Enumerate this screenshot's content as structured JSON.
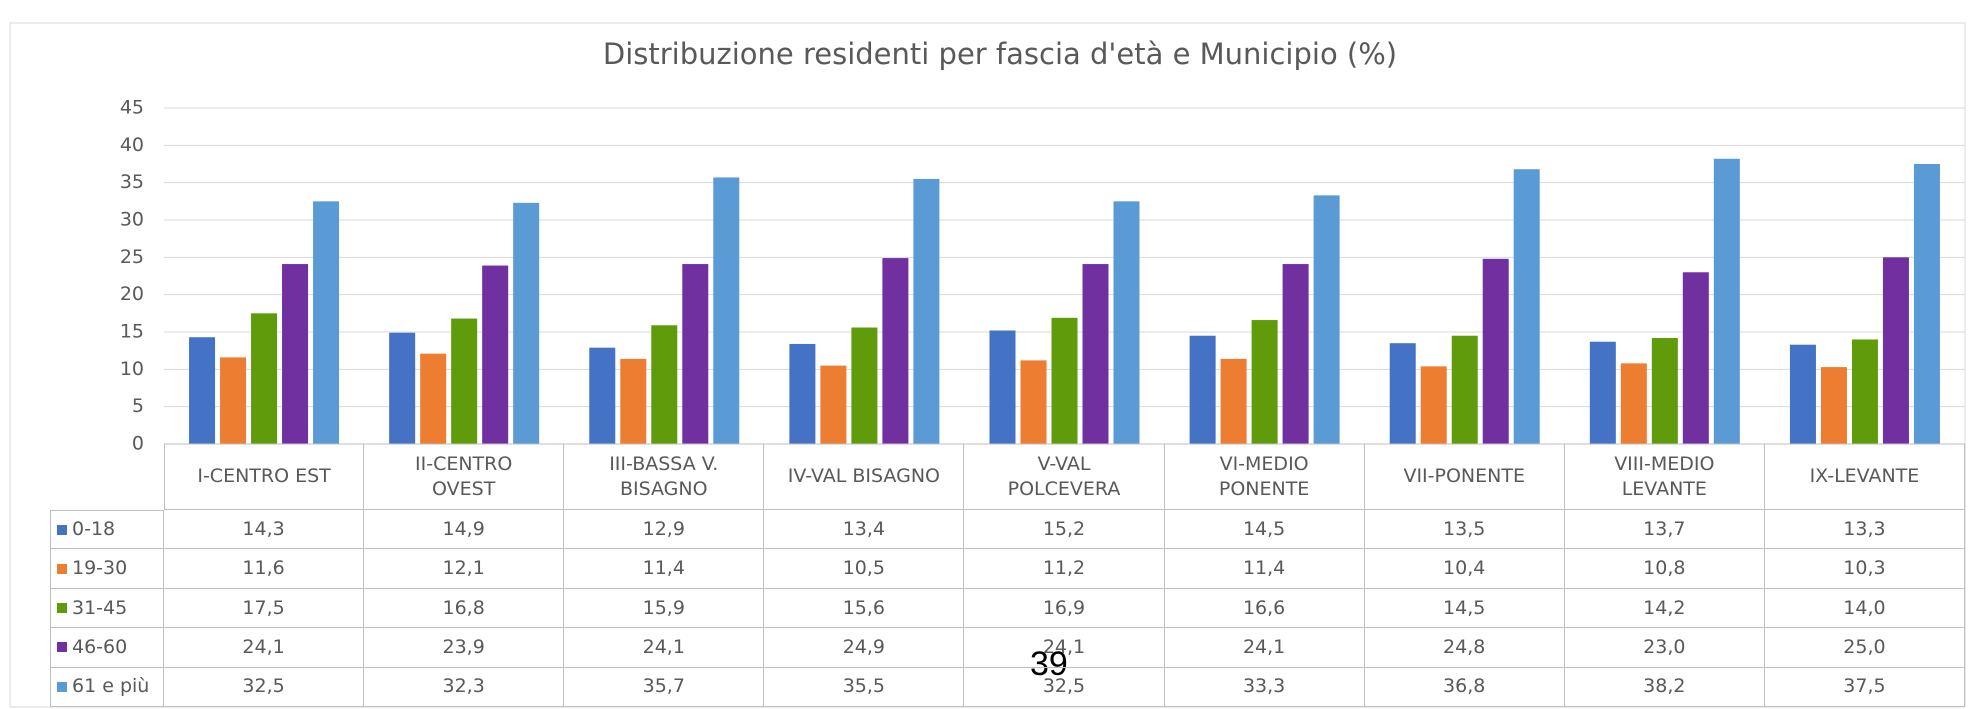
{
  "chart_data": {
    "type": "bar",
    "title": "Distribuzione residenti per fascia d'età e Municipio (%)",
    "categories": [
      "I-CENTRO EST",
      "II-CENTRO OVEST",
      "III-BASSA V. BISAGNO",
      "IV-VAL BISAGNO",
      "V-VAL POLCEVERA",
      "VI-MEDIO PONENTE",
      "VII-PONENTE",
      "VIII-MEDIO LEVANTE",
      "IX-LEVANTE"
    ],
    "series": [
      {
        "name": "0-18",
        "color": "#4472c4",
        "values": [
          14.3,
          14.9,
          12.9,
          13.4,
          15.2,
          14.5,
          13.5,
          13.7,
          13.3
        ],
        "value_labels": [
          "14,3",
          "14,9",
          "12,9",
          "13,4",
          "15,2",
          "14,5",
          "13,5",
          "13,7",
          "13,3"
        ]
      },
      {
        "name": "19-30",
        "color": "#ed7d31",
        "values": [
          11.6,
          12.1,
          11.4,
          10.5,
          11.2,
          11.4,
          10.4,
          10.8,
          10.3
        ],
        "value_labels": [
          "11,6",
          "12,1",
          "11,4",
          "10,5",
          "11,2",
          "11,4",
          "10,4",
          "10,8",
          "10,3"
        ]
      },
      {
        "name": "31-45",
        "color": "#5f9b0a",
        "values": [
          17.5,
          16.8,
          15.9,
          15.6,
          16.9,
          16.6,
          14.5,
          14.2,
          14.0
        ],
        "value_labels": [
          "17,5",
          "16,8",
          "15,9",
          "15,6",
          "16,9",
          "16,6",
          "14,5",
          "14,2",
          "14,0"
        ]
      },
      {
        "name": "46-60",
        "color": "#7030a0",
        "values": [
          24.1,
          23.9,
          24.1,
          24.9,
          24.1,
          24.1,
          24.8,
          23.0,
          25.0
        ],
        "value_labels": [
          "24,1",
          "23,9",
          "24,1",
          "24,9",
          "24,1",
          "24,1",
          "24,8",
          "23,0",
          "25,0"
        ]
      },
      {
        "name": "61 e più",
        "color": "#5b9bd5",
        "values": [
          32.5,
          32.3,
          35.7,
          35.5,
          32.5,
          33.3,
          36.8,
          38.2,
          37.5
        ],
        "value_labels": [
          "32,5",
          "32,3",
          "35,7",
          "35,5",
          "32,5",
          "33,3",
          "36,8",
          "38,2",
          "37,5"
        ]
      }
    ],
    "ylim": [
      0,
      45
    ],
    "yticks": [
      0,
      5,
      10,
      15,
      20,
      25,
      30,
      35,
      40,
      45
    ],
    "grid": true
  },
  "page_number": "39"
}
